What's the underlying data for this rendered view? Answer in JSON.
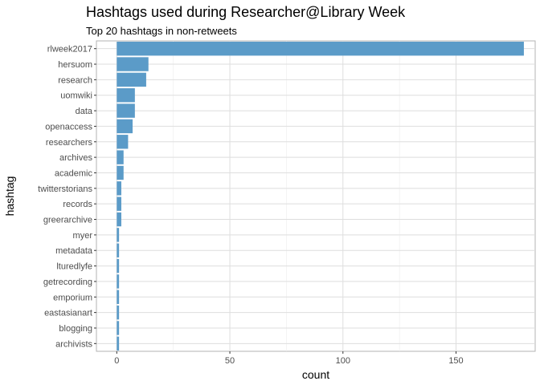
{
  "chart_data": {
    "type": "bar",
    "orientation": "horizontal",
    "title": "Hashtags used during Researcher@Library Week",
    "subtitle": "Top 20 hashtags in non-retweets",
    "xlabel": "count",
    "ylabel": "hashtag",
    "xlim": [
      -9,
      185
    ],
    "x_ticks": [
      0,
      50,
      100,
      150
    ],
    "grid": true,
    "legend": "none",
    "bar_color": "#5b9bc8",
    "categories": [
      "rlweek2017",
      "hersuom",
      "research",
      "uomwiki",
      "data",
      "openaccess",
      "researchers",
      "archives",
      "academic",
      "twitterstorians",
      "records",
      "greerarchive",
      "myer",
      "metadata",
      "lturedlyfe",
      "getrecording",
      "emporium",
      "eastasianart",
      "blogging",
      "archivists"
    ],
    "values": [
      180,
      14,
      13,
      8,
      8,
      7,
      5,
      3,
      3,
      2,
      2,
      2,
      1,
      1,
      1,
      1,
      1,
      1,
      1,
      1
    ]
  }
}
